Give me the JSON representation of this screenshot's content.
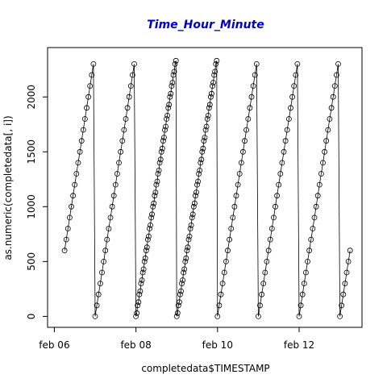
{
  "chart_data": {
    "type": "scatter",
    "title": "Time_Hour_Minute",
    "xlabel": "completedata$TIMESTAMP",
    "ylabel": "as.numeric(completedata[, i])",
    "xlim": [
      "2024-02-05T20:00",
      "2024-02-13T13:00"
    ],
    "ylim": [
      -100,
      2450
    ],
    "x_ticks": [
      {
        "label": "feb 06",
        "value": "2024-02-06T00:00"
      },
      {
        "label": "feb 08",
        "value": "2024-02-08T00:00"
      },
      {
        "label": "feb 10",
        "value": "2024-02-10T00:00"
      },
      {
        "label": "feb 12",
        "value": "2024-02-12T00:00"
      }
    ],
    "y_ticks": [
      0,
      500,
      1000,
      1500,
      2000
    ],
    "marker": "open-circle",
    "connecting_line": true,
    "sampling_interval_minutes": 60,
    "series": [
      {
        "start": "2024-02-06T06:00",
        "end": "2024-02-13T06:00"
      }
    ],
    "note_duplicates": "Feb 08 and Feb 09 show doubled hourly readings (offset by 30 minutes)."
  }
}
